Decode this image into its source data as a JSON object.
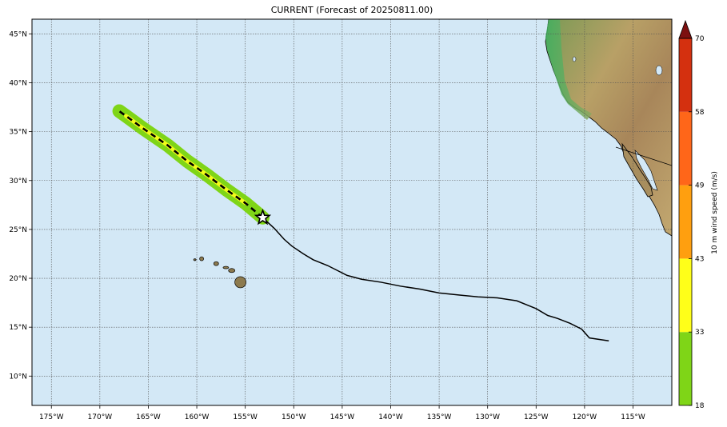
{
  "title": "CURRENT (Forecast of 20250811.00)",
  "map": {
    "lon_range": [
      -177,
      -111
    ],
    "lat_range": [
      7,
      46.5
    ],
    "lon_ticks": [
      "175°W",
      "170°W",
      "165°W",
      "160°W",
      "155°W",
      "150°W",
      "145°W",
      "140°W",
      "135°W",
      "130°W",
      "125°W",
      "120°W",
      "115°W"
    ],
    "lat_ticks": [
      "45°N",
      "40°N",
      "35°N",
      "30°N",
      "25°N",
      "20°N",
      "15°N",
      "10°N"
    ],
    "ocean_color": "#d3e8f6",
    "grid": "dotted"
  },
  "colorbar": {
    "label": "10 m wind speed (m/s)",
    "ticks": [
      "70",
      "58",
      "49",
      "43",
      "33",
      "18"
    ],
    "colors": [
      "#7fd517",
      "#ffff19",
      "#ff9f0f",
      "#ff6619",
      "#d4300f",
      "#7d1010"
    ]
  },
  "track": {
    "past": [
      [
        -117.5,
        13.6
      ],
      [
        -119.5,
        13.9
      ],
      [
        -120.3,
        14.8
      ],
      [
        -121.5,
        15.4
      ],
      [
        -122.8,
        15.9
      ],
      [
        -123.8,
        16.2
      ],
      [
        -125,
        16.9
      ],
      [
        -127,
        17.7
      ],
      [
        -129,
        18.0
      ],
      [
        -131,
        18.1
      ],
      [
        -133,
        18.3
      ],
      [
        -135,
        18.5
      ],
      [
        -137,
        18.9
      ],
      [
        -139,
        19.2
      ],
      [
        -141,
        19.6
      ],
      [
        -143,
        19.9
      ],
      [
        -144.5,
        20.3
      ],
      [
        -145.5,
        20.8
      ],
      [
        -146.5,
        21.3
      ],
      [
        -148,
        21.9
      ],
      [
        -149,
        22.5
      ],
      [
        -150.2,
        23.3
      ],
      [
        -151,
        24.0
      ],
      [
        -152,
        25.1
      ],
      [
        -153.2,
        26.2
      ]
    ],
    "forecast": [
      [
        -153.2,
        26.2
      ],
      [
        -155,
        27.7
      ],
      [
        -157,
        29.1
      ],
      [
        -159,
        30.6
      ],
      [
        -161,
        32.0
      ],
      [
        -163,
        33.6
      ],
      [
        -165.5,
        35.3
      ],
      [
        -167.3,
        36.6
      ],
      [
        -168,
        37.1
      ]
    ],
    "current_position": [
      -153.2,
      26.2
    ]
  },
  "wind_swath": {
    "outer_color": "#7fd517",
    "inner_color": "#ffff19"
  },
  "land": {
    "hawaii": [
      {
        "name": "big-island",
        "lon": -155.5,
        "lat": 19.6
      },
      {
        "name": "maui",
        "lon": -156.4,
        "lat": 20.8
      },
      {
        "name": "molokai",
        "lon": -157.0,
        "lat": 21.1
      },
      {
        "name": "oahu",
        "lon": -158.0,
        "lat": 21.5
      },
      {
        "name": "kauai",
        "lon": -159.5,
        "lat": 22.0
      },
      {
        "name": "niihau",
        "lon": -160.2,
        "lat": 21.9
      }
    ]
  }
}
